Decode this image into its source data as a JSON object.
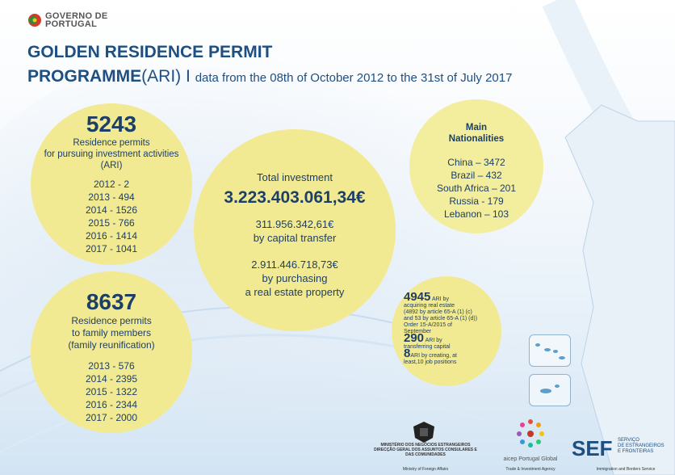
{
  "header": {
    "logo_line1": "GOVERNO DE",
    "logo_line2": "PORTUGAL",
    "title_line1": "GOLDEN RESIDENCE PERMIT",
    "title_line2": "PROGRAMME",
    "title_ari": "(ARI)",
    "title_sep": " I ",
    "subtitle": "data from the 08th of October 2012 to the 31st of July 2017"
  },
  "permits": {
    "total": "5243",
    "desc1": "Residence permits",
    "desc2": "for pursuing investment activities",
    "desc3": "(ARI)",
    "years": [
      "2012 - 2",
      "2013 - 494",
      "2014 - 1526",
      "2015 - 766",
      "2016 - 1414",
      "2017 - 1041"
    ]
  },
  "family": {
    "total": "8637",
    "desc1": "Residence permits",
    "desc2": "to family members",
    "desc3": "(family reunification)",
    "years": [
      "2013 - 576",
      "2014 - 2395",
      "2015 - 1322",
      "2016 - 2344",
      "2017 - 2000"
    ]
  },
  "investment": {
    "label": "Total investment",
    "total": "3.223.403.061,34€",
    "capital_value": "311.956.342,61€",
    "capital_label": "by capital transfer",
    "property_value": "2.911.446.718,73€",
    "property_label1": "by purchasing",
    "property_label2": "a real estate property"
  },
  "nationalities": {
    "title1": "Main",
    "title2": "Nationalities",
    "items": [
      "China – 3472",
      "Brazil  –  432",
      "South Africa – 201",
      "Russia - 179",
      "Lebanon – 103"
    ]
  },
  "breakdown": {
    "real_estate_num": "4945",
    "real_estate_text1": "ARI by",
    "real_estate_text2": "acquiring real estate",
    "real_estate_text3": "(4892 by article 65-A (1) (c)",
    "real_estate_text4": "and 53 by article 65-A (1) (d))",
    "real_estate_text5": "Order 15-A/2015 of",
    "real_estate_text6": "September",
    "capital_num": "290",
    "capital_text1": "ARI by",
    "capital_text2": "transferring capital",
    "jobs_num": "8",
    "jobs_text1": "ARI by creating, at",
    "jobs_text2": "least,10 job positions"
  },
  "footer": {
    "mne_line1": "MINISTÉRIO DOS NEGÓCIOS ESTRANGEIROS",
    "mne_line2": "DIRECÇÃO GERAL DOS ASSUNTOS CONSULARES E",
    "mne_line3": "DAS COMUNIDADES",
    "mne_caption": "Ministry of Foreign Affairs",
    "aicep_name": "aicep Portugal Global",
    "aicep_caption": "Trade & Investment Agency",
    "sef_name": "SEF",
    "sef_line1": "SERVIÇO",
    "sef_line2": "DE ESTRANGEIROS",
    "sef_line3": "E FRONTEIRAS",
    "sef_caption": "Immigration and Borders Service"
  },
  "colors": {
    "title": "#1d4f82",
    "circle": "#f2ea93",
    "text": "#1d3f66"
  }
}
